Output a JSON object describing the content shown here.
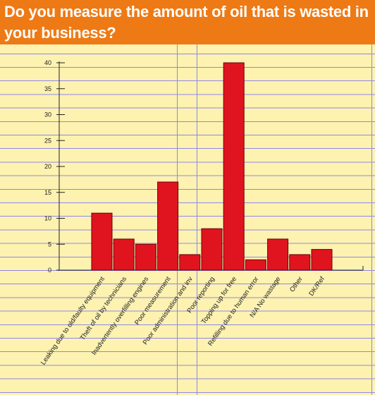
{
  "chart_data": {
    "type": "bar",
    "title": "Do you measure the amount of oil that is wasted in your business?",
    "categories": [
      "Leaking due to old/faulty equipment",
      "Theft of oil by technicians",
      "Inadvertently overfilling engines",
      "Poor measurement",
      "Poor administration and inv",
      "Poor reporting",
      "Topping up for free",
      "Refilling due to human error",
      "N/A No wastage",
      "Other",
      "DK/Ref"
    ],
    "values": [
      11,
      6,
      5,
      17,
      3,
      8,
      40,
      2,
      6,
      3,
      4
    ],
    "ylim": [
      0,
      40
    ],
    "yticks": [
      0,
      5,
      10,
      15,
      20,
      25,
      30,
      35,
      40
    ],
    "xlabel": "",
    "ylabel": "",
    "grid": false,
    "bar_color": "#e0141e",
    "header_color": "#ee7a15"
  }
}
